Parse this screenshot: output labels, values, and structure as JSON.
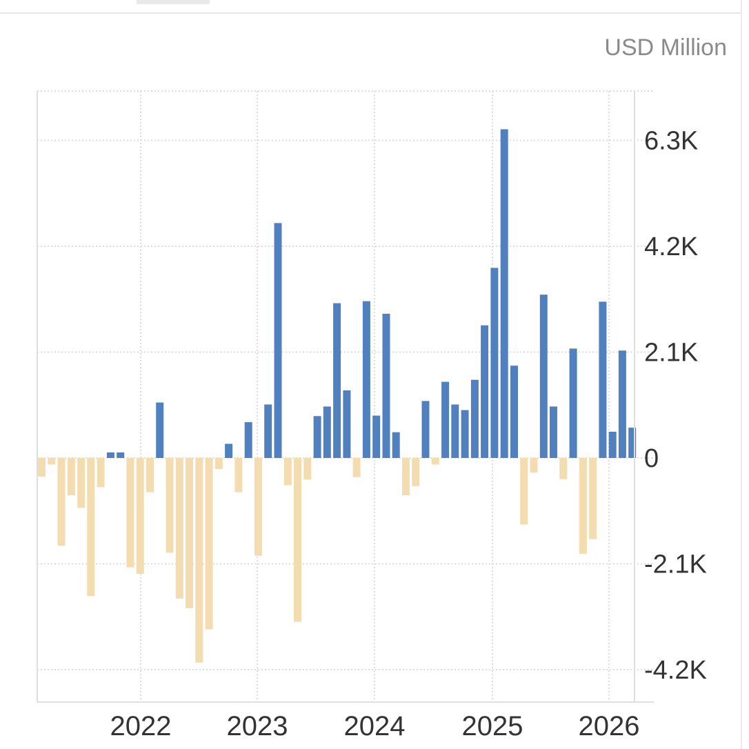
{
  "unit_label": "USD Million",
  "colors": {
    "positive": "#5180be",
    "negative": "#f2dcb0",
    "grid": "#dcdcdc",
    "axis_text": "#333333"
  },
  "chart_data": {
    "type": "bar",
    "title": "",
    "xlabel": "",
    "ylabel": "USD Million",
    "ylim": [
      -4.7,
      7.2
    ],
    "y_ticks": [
      {
        "value": 6.3,
        "label": "6.3K"
      },
      {
        "value": 4.2,
        "label": "4.2K"
      },
      {
        "value": 2.1,
        "label": "2.1K"
      },
      {
        "value": 0,
        "label": "0"
      },
      {
        "value": -2.1,
        "label": "-2.1K"
      },
      {
        "value": -4.2,
        "label": "-4.2K"
      }
    ],
    "x_ticks": [
      "2022",
      "2023",
      "2024",
      "2025",
      "2026"
    ],
    "x_start": "2021-03",
    "grid": true,
    "y_axis_position": "right",
    "legend": "none",
    "values": [
      -0.37,
      -0.13,
      -1.74,
      -0.74,
      -0.99,
      -2.74,
      -0.58,
      0.11,
      0.11,
      -2.17,
      -2.3,
      -0.68,
      1.1,
      -1.88,
      -2.79,
      -2.98,
      -4.06,
      -3.4,
      -0.22,
      0.28,
      -0.68,
      0.71,
      -1.94,
      1.06,
      4.66,
      -0.54,
      -3.25,
      -0.43,
      0.83,
      1.02,
      3.07,
      1.34,
      -0.38,
      3.11,
      0.84,
      2.86,
      0.51,
      -0.74,
      -0.56,
      1.13,
      -0.13,
      1.51,
      1.06,
      0.95,
      1.55,
      2.63,
      3.77,
      6.52,
      1.83,
      -1.32,
      -0.29,
      3.24,
      1.02,
      -0.42,
      2.17,
      -1.9,
      -1.61,
      3.1,
      0.52,
      2.13,
      0.6
    ]
  }
}
